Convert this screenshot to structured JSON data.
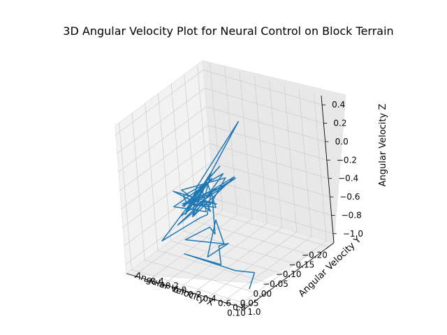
{
  "chart_data": {
    "type": "line",
    "projection": "3d",
    "title": "3D Angular Velocity Plot for Neural Control on Block Terrain",
    "xlabel": "Angular Velocity X",
    "ylabel": "Angular Velocity Y",
    "zlabel": "Angular Velocity Z",
    "xlim": [
      -0.22,
      0.12
    ],
    "ylim": [
      -0.5,
      1.1
    ],
    "zlim": [
      -1.1,
      0.5
    ],
    "xticks": [
      "−0.20",
      "−0.15",
      "−0.10",
      "−0.05",
      "0.00",
      "0.05",
      "0.10"
    ],
    "yticks": [
      "−0.4",
      "−0.2",
      "0.0",
      "0.2",
      "0.4",
      "0.6",
      "0.8",
      "1.0"
    ],
    "zticks": [
      "−1.0",
      "−0.8",
      "−0.6",
      "−0.4",
      "−0.2",
      "0.0",
      "0.2",
      "0.4"
    ],
    "xtick_values": [
      -0.2,
      -0.15,
      -0.1,
      -0.05,
      0.0,
      0.05,
      0.1
    ],
    "ytick_values": [
      -0.4,
      -0.2,
      0.0,
      0.2,
      0.4,
      0.6,
      0.8,
      1.0
    ],
    "ztick_values": [
      -1.0,
      -0.8,
      -0.6,
      -0.4,
      -0.2,
      0.0,
      0.2,
      0.4
    ],
    "grid": true,
    "series": [
      {
        "color": "#1f77b4",
        "x": [
          -0.02,
          -0.04,
          -0.01,
          -0.06,
          0.02,
          -0.03,
          -0.08,
          0.01,
          -0.05,
          0.0,
          -0.12,
          -0.02,
          0.03,
          -0.07,
          -0.01,
          -0.2,
          -0.04,
          0.02,
          -0.09,
          -0.03,
          0.01,
          -0.06,
          -0.11,
          0.0,
          -0.02,
          -0.05,
          0.04,
          -0.08,
          -0.01,
          -0.03,
          0.02,
          -0.07,
          -0.04,
          0.01,
          -0.1,
          -0.02,
          0.05,
          -0.06,
          0.0,
          -0.03,
          -0.09,
          0.02,
          -0.05,
          0.06,
          0.03,
          -0.02,
          -0.07,
          0.01,
          0.04,
          0.08,
          0.02,
          -0.01,
          0.07,
          0.03,
          0.0,
          0.05,
          0.1,
          0.04,
          0.01,
          0.06
        ],
        "y": [
          0.0,
          0.05,
          -0.1,
          0.1,
          0.0,
          -0.05,
          0.15,
          -0.05,
          0.05,
          -0.15,
          0.2,
          0.0,
          -0.1,
          0.1,
          0.05,
          0.0,
          -0.05,
          0.1,
          0.15,
          -0.2,
          0.0,
          0.05,
          0.1,
          -0.1,
          0.2,
          0.0,
          0.05,
          -0.05,
          0.15,
          0.1,
          -0.15,
          0.0,
          0.2,
          0.05,
          -0.05,
          0.1,
          0.0,
          0.15,
          -0.1,
          0.05,
          0.3,
          0.1,
          0.0,
          -0.2,
          0.25,
          0.15,
          0.05,
          0.35,
          0.4,
          0.2,
          0.5,
          0.3,
          0.45,
          0.6,
          0.35,
          0.55,
          0.25,
          0.7,
          0.85,
          0.95
        ],
        "z": [
          -0.5,
          -0.4,
          -0.6,
          -0.3,
          -0.55,
          -0.45,
          -0.2,
          -0.5,
          -0.35,
          -0.65,
          -0.4,
          -0.5,
          -0.3,
          -0.6,
          -0.45,
          0.0,
          -0.4,
          -0.55,
          -0.3,
          -0.5,
          -0.45,
          -0.6,
          -0.4,
          -0.35,
          -0.55,
          -0.5,
          -0.4,
          -0.45,
          -0.3,
          -0.6,
          -0.5,
          -0.4,
          -0.55,
          -0.45,
          -0.35,
          -0.5,
          -0.6,
          -0.4,
          -0.5,
          -0.45,
          -0.3,
          -0.55,
          -0.4,
          -0.8,
          -0.5,
          -0.6,
          -0.45,
          -0.7,
          -0.55,
          -0.65,
          -0.75,
          -0.6,
          -0.8,
          -0.7,
          -0.85,
          -0.9,
          -0.75,
          -0.95,
          -1.0,
          -1.05
        ]
      }
    ]
  }
}
